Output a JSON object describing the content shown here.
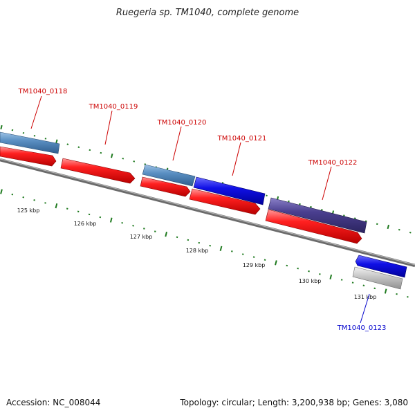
{
  "title": "Ruegeria sp. TM1040, complete genome",
  "footer": {
    "accession": "Accession: NC_008044",
    "summary": "Topology: circular; Length: 3,200,938 bp; Genes: 3,080"
  },
  "colors": {
    "backbone": "#7a7a7a",
    "tick": "#1f7a1f",
    "label_red": "#cc0000",
    "label_blue": "#0000cc",
    "cds_red": "#ee1111",
    "gene_steelblue": "#4f86b8",
    "gene_blue": "#1010e0",
    "gene_darkslate": "#483d8b",
    "gene_gray": "#b8b8b8"
  },
  "ticks": [
    {
      "label": "125 kbp"
    },
    {
      "label": "126 kbp"
    },
    {
      "label": "127 kbp"
    },
    {
      "label": "128 kbp"
    },
    {
      "label": "129 kbp"
    },
    {
      "label": "130 kbp"
    },
    {
      "label": "131 kbp"
    }
  ],
  "gene_labels": [
    {
      "text": "TM1040_0118",
      "color": "label_red"
    },
    {
      "text": "TM1040_0119",
      "color": "label_red"
    },
    {
      "text": "TM1040_0120",
      "color": "label_red"
    },
    {
      "text": "TM1040_0121",
      "color": "label_red"
    },
    {
      "text": "TM1040_0122",
      "color": "label_red"
    },
    {
      "text": "TM1040_0123",
      "color": "label_blue"
    }
  ]
}
